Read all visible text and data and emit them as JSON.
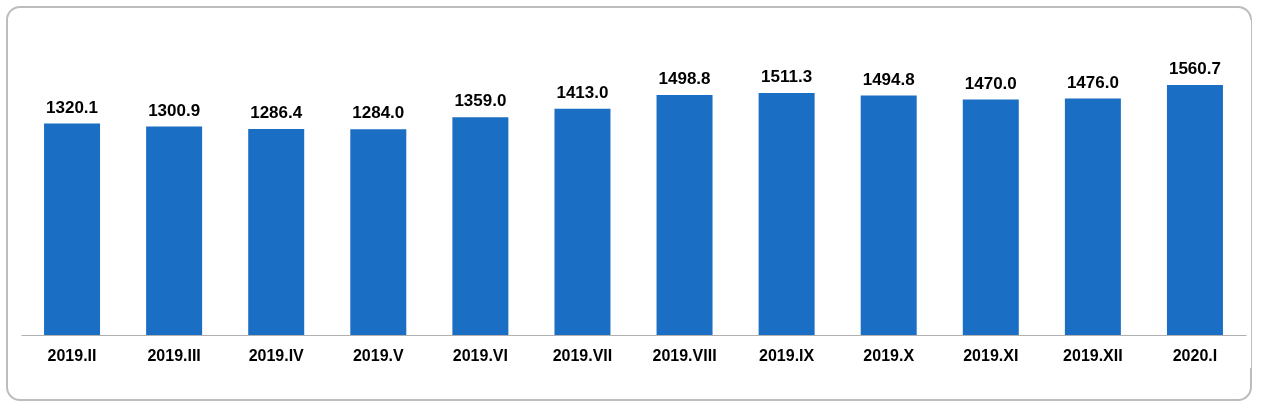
{
  "chart_data": {
    "type": "bar",
    "categories": [
      "2019.II",
      "2019.III",
      "2019.IV",
      "2019.V",
      "2019.VI",
      "2019.VII",
      "2019.VIII",
      "2019.IX",
      "2019.X",
      "2019.XI",
      "2019.XII",
      "2020.I"
    ],
    "values": [
      1320.1,
      1300.9,
      1286.4,
      1284.0,
      1359.0,
      1413.0,
      1498.8,
      1511.3,
      1494.8,
      1470.0,
      1476.0,
      1560.7
    ],
    "value_labels": [
      "1320.1",
      "1300.9",
      "1286.4",
      "1284.0",
      "1359.0",
      "1413.0",
      "1498.8",
      "1511.3",
      "1494.8",
      "1470.0",
      "1476.0",
      "1560.7"
    ],
    "color": "#1a6fc4"
  }
}
